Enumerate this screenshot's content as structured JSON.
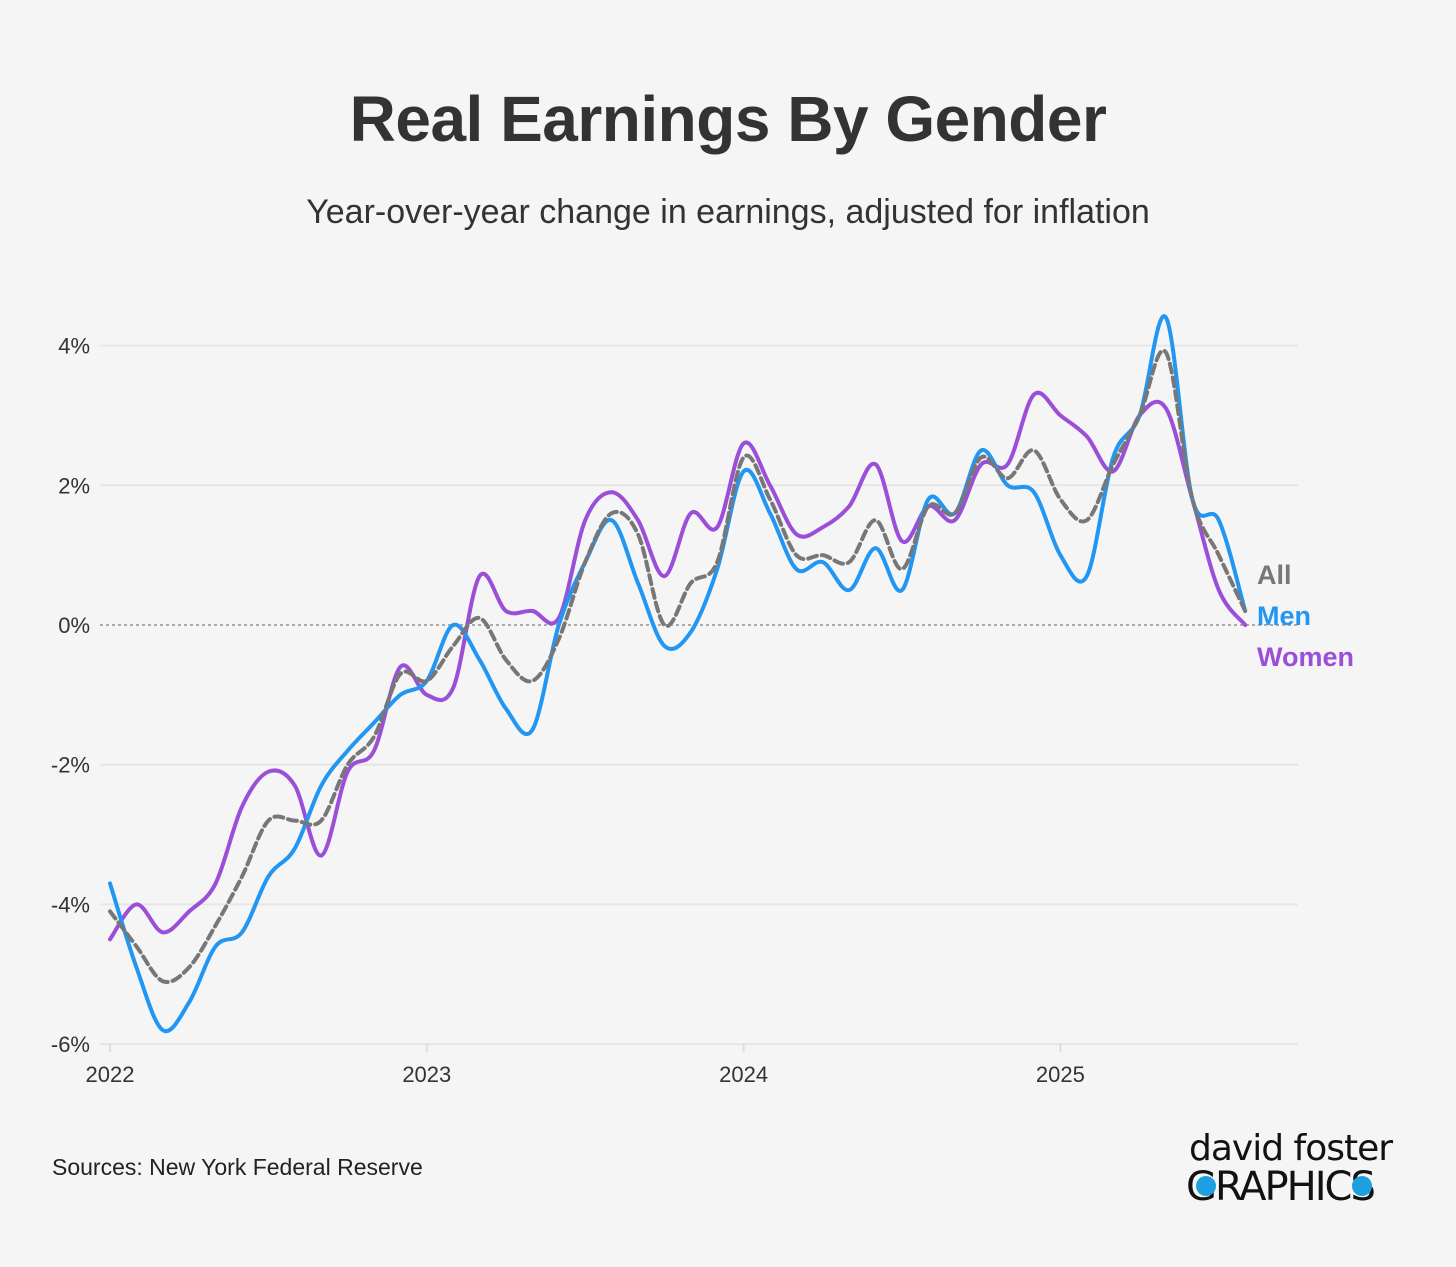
{
  "chart_data": {
    "type": "line",
    "title": "Real Earnings By Gender",
    "subtitle": "Year-over-year change in earnings, adjusted for inflation",
    "xlabel": "",
    "ylabel": "",
    "x_start": "2022-01",
    "x_frequency": "monthly",
    "x_ticks": [
      "2022",
      "2023",
      "2024",
      "2025"
    ],
    "y_ticks": [
      "4%",
      "2%",
      "0%",
      "-2%",
      "-4%",
      "-6%"
    ],
    "y_tick_values": [
      4,
      2,
      0,
      -2,
      -4,
      -6
    ],
    "ylim": [
      -6,
      4.5
    ],
    "grid": true,
    "legend": "direct labels at right end",
    "series": [
      {
        "name": "All",
        "color": "#777777",
        "dash": true,
        "values": [
          -4.1,
          -4.6,
          -5.1,
          -4.9,
          -4.3,
          -3.6,
          -2.8,
          -2.8,
          -2.8,
          -2.0,
          -1.6,
          -0.7,
          -0.8,
          -0.3,
          0.1,
          -0.5,
          -0.8,
          -0.2,
          0.9,
          1.6,
          1.3,
          0.0,
          0.6,
          0.9,
          2.4,
          1.8,
          1.0,
          1.0,
          0.9,
          1.5,
          0.8,
          1.7,
          1.6,
          2.4,
          2.1,
          2.5,
          1.8,
          1.5,
          2.3,
          3.0,
          3.9,
          1.8,
          1.0,
          0.2
        ]
      },
      {
        "name": "Men",
        "color": "#2196f3",
        "dash": false,
        "values": [
          -3.7,
          -4.9,
          -5.8,
          -5.4,
          -4.6,
          -4.4,
          -3.6,
          -3.2,
          -2.3,
          -1.8,
          -1.4,
          -1.0,
          -0.8,
          0.0,
          -0.5,
          -1.2,
          -1.5,
          0.0,
          0.9,
          1.5,
          0.6,
          -0.3,
          -0.1,
          0.8,
          2.2,
          1.6,
          0.8,
          0.9,
          0.5,
          1.1,
          0.5,
          1.8,
          1.6,
          2.5,
          2.0,
          1.9,
          1.0,
          0.7,
          2.4,
          3.0,
          4.4,
          1.8,
          1.5,
          0.2
        ]
      },
      {
        "name": "Women",
        "color": "#9b4fd9",
        "dash": false,
        "values": [
          -4.5,
          -4.0,
          -4.4,
          -4.1,
          -3.7,
          -2.6,
          -2.1,
          -2.3,
          -3.3,
          -2.1,
          -1.8,
          -0.6,
          -1.0,
          -0.9,
          0.7,
          0.2,
          0.2,
          0.1,
          1.5,
          1.9,
          1.5,
          0.7,
          1.6,
          1.4,
          2.6,
          2.0,
          1.3,
          1.4,
          1.7,
          2.3,
          1.2,
          1.7,
          1.5,
          2.3,
          2.3,
          3.3,
          3.0,
          2.7,
          2.2,
          3.0,
          3.1,
          1.8,
          0.5,
          0.0
        ]
      }
    ]
  },
  "source": "Sources: New York Federal Reserve",
  "logo": {
    "line1": "david foster",
    "line2": "GRAPHICS"
  }
}
